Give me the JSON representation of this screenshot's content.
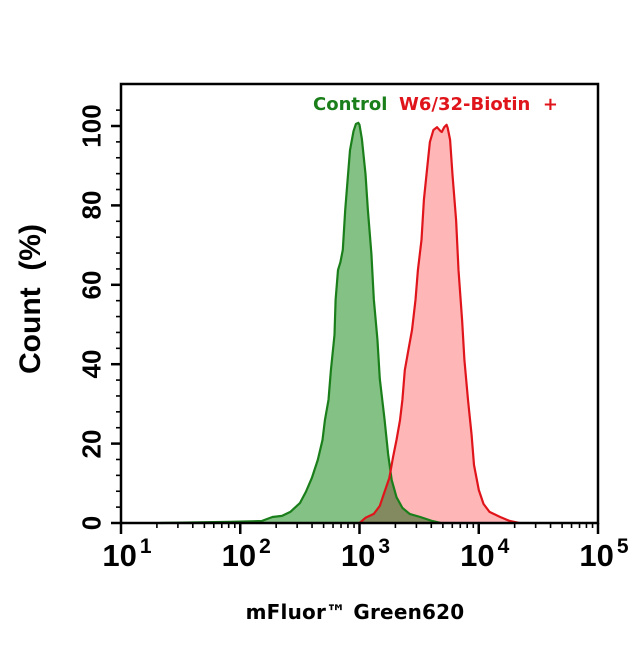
{
  "chart_data": {
    "type": "area",
    "title": "",
    "xlabel": "mFluor™ Green620",
    "ylabel": "Count  (%)",
    "x_scale": "log",
    "xlim": [
      10,
      100000
    ],
    "ylim": [
      0,
      106
    ],
    "x_ticks": [
      {
        "base": "10",
        "exp": "1",
        "log": 1
      },
      {
        "base": "10",
        "exp": "2",
        "log": 2
      },
      {
        "base": "10",
        "exp": "3",
        "log": 3
      },
      {
        "base": "10",
        "exp": "4",
        "log": 4
      },
      {
        "base": "10",
        "exp": "5",
        "log": 5
      }
    ],
    "y_ticks": [
      0,
      20,
      40,
      60,
      80,
      100
    ],
    "grid": false,
    "legend_position": "top-inside",
    "series": [
      {
        "name": "Control",
        "color": "#1a7f1a",
        "fill": "#84c184",
        "points_log10x_pct": [
          [
            1.33,
            0.0
          ],
          [
            1.91,
            0.3
          ],
          [
            2.18,
            0.5
          ],
          [
            2.27,
            1.5
          ],
          [
            2.35,
            1.8
          ],
          [
            2.42,
            2.8
          ],
          [
            2.5,
            5.0
          ],
          [
            2.55,
            7.8
          ],
          [
            2.6,
            11.3
          ],
          [
            2.65,
            15.9
          ],
          [
            2.69,
            20.9
          ],
          [
            2.71,
            25.9
          ],
          [
            2.74,
            31.0
          ],
          [
            2.76,
            38.5
          ],
          [
            2.79,
            47.4
          ],
          [
            2.8,
            56.2
          ],
          [
            2.82,
            63.7
          ],
          [
            2.84,
            65.7
          ],
          [
            2.86,
            68.8
          ],
          [
            2.88,
            78.8
          ],
          [
            2.9,
            86.4
          ],
          [
            2.92,
            93.9
          ],
          [
            2.95,
            98.7
          ],
          [
            2.97,
            100.5
          ],
          [
            2.99,
            100.8
          ],
          [
            3.0,
            100.3
          ],
          [
            3.02,
            96.7
          ],
          [
            3.05,
            87.9
          ],
          [
            3.07,
            79.1
          ],
          [
            3.1,
            67.8
          ],
          [
            3.12,
            56.4
          ],
          [
            3.15,
            46.3
          ],
          [
            3.17,
            36.3
          ],
          [
            3.21,
            26.2
          ],
          [
            3.24,
            17.4
          ],
          [
            3.27,
            10.8
          ],
          [
            3.31,
            6.5
          ],
          [
            3.36,
            3.8
          ],
          [
            3.42,
            2.3
          ],
          [
            3.51,
            1.5
          ],
          [
            3.61,
            0.5
          ],
          [
            3.68,
            0.0
          ]
        ],
        "peak_x": 1000,
        "peak_pct": 100
      },
      {
        "name": "W6/32-Biotin  +",
        "color": "#e0151b",
        "fill": "#ff7a7c",
        "points_log10x_pct": [
          [
            3.0,
            0.0
          ],
          [
            3.05,
            1.3
          ],
          [
            3.12,
            2.3
          ],
          [
            3.17,
            4.3
          ],
          [
            3.21,
            7.8
          ],
          [
            3.25,
            11.3
          ],
          [
            3.28,
            16.4
          ],
          [
            3.31,
            20.9
          ],
          [
            3.34,
            25.9
          ],
          [
            3.36,
            31.0
          ],
          [
            3.38,
            38.5
          ],
          [
            3.41,
            43.6
          ],
          [
            3.44,
            48.6
          ],
          [
            3.47,
            56.2
          ],
          [
            3.49,
            63.7
          ],
          [
            3.52,
            71.3
          ],
          [
            3.54,
            81.4
          ],
          [
            3.57,
            90.2
          ],
          [
            3.59,
            96.0
          ],
          [
            3.62,
            99.0
          ],
          [
            3.65,
            99.7
          ],
          [
            3.68,
            98.7
          ],
          [
            3.69,
            98.5
          ],
          [
            3.71,
            99.7
          ],
          [
            3.73,
            100.3
          ],
          [
            3.74,
            99.5
          ],
          [
            3.76,
            96.5
          ],
          [
            3.78,
            87.7
          ],
          [
            3.81,
            76.3
          ],
          [
            3.83,
            63.7
          ],
          [
            3.86,
            51.1
          ],
          [
            3.88,
            41.1
          ],
          [
            3.91,
            31.0
          ],
          [
            3.94,
            22.2
          ],
          [
            3.96,
            14.6
          ],
          [
            4.0,
            8.3
          ],
          [
            4.04,
            4.8
          ],
          [
            4.09,
            2.8
          ],
          [
            4.18,
            1.5
          ],
          [
            4.26,
            0.5
          ],
          [
            4.34,
            0.0
          ]
        ],
        "peak_x": 5000,
        "peak_pct": 100
      }
    ]
  },
  "legend": {
    "control_label": "Control",
    "sample_label": "W6/32-Biotin  +"
  },
  "axes": {
    "x_title": "mFluor™ Green620",
    "y_title": "Count  (%)",
    "y_tick_labels": [
      "0",
      "20",
      "40",
      "60",
      "80",
      "100"
    ]
  }
}
